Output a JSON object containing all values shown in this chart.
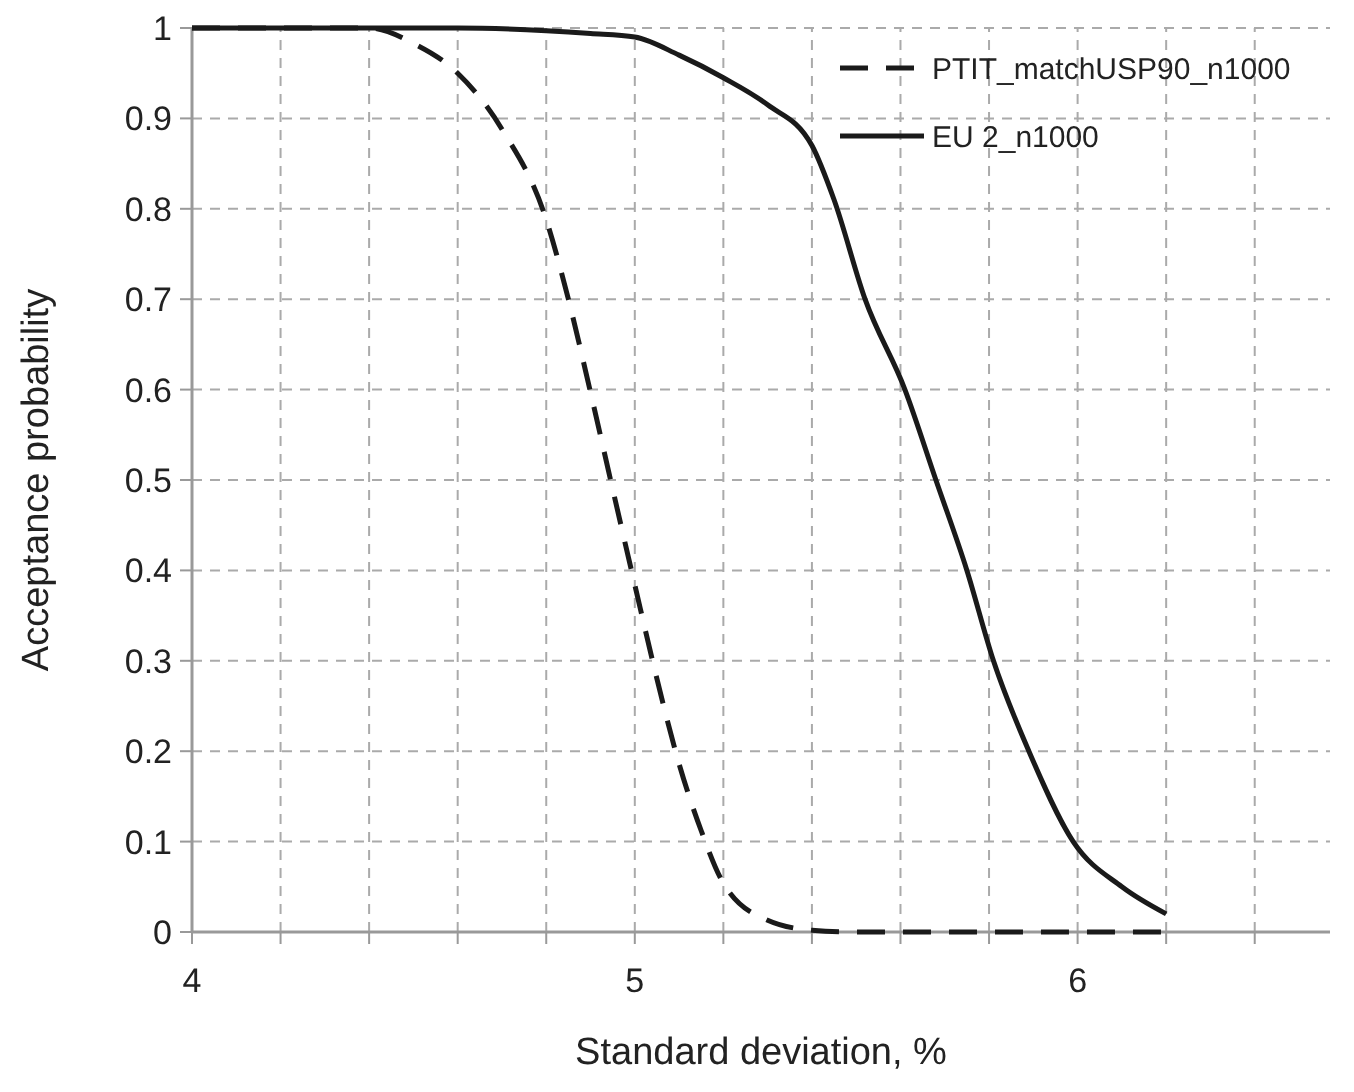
{
  "chart_data": {
    "type": "line",
    "xlabel": "Standard deviation, %",
    "ylabel": "Acceptance probability",
    "xlim": [
      4,
      6.57
    ],
    "xticks": [
      4,
      {
        "value": 4.2,
        "label": null
      },
      {
        "value": 4.4,
        "label": null
      },
      {
        "value": 4.6,
        "label": null
      },
      {
        "value": 4.8,
        "label": null
      },
      5,
      {
        "value": 5.2,
        "label": null
      },
      {
        "value": 5.4,
        "label": null
      },
      {
        "value": 5.6,
        "label": null
      },
      {
        "value": 5.8,
        "label": null
      },
      6,
      {
        "value": 6.2,
        "label": null
      },
      {
        "value": 6.4,
        "label": null
      }
    ],
    "ylim": [
      0,
      1
    ],
    "yticks": [
      0,
      0.1,
      0.2,
      0.3,
      0.4,
      0.5,
      0.6,
      0.7,
      0.8,
      0.9,
      1
    ],
    "grid": true,
    "legend": "top right",
    "marker": "none",
    "series": [
      {
        "name": "PTIT_matchUSP90_n1000",
        "color": "#1a1a1a",
        "line_style": "dashed",
        "x": [
          4,
          4.4,
          4.5,
          4.6,
          4.7,
          4.8,
          4.85,
          4.9,
          4.95,
          5.0,
          5.05,
          5.1,
          5.15,
          5.2,
          5.3,
          5.4,
          5.5,
          5.6,
          5.8,
          6.0,
          6.2
        ],
        "values": [
          1,
          1,
          0.983,
          0.95,
          0.888,
          0.788,
          0.7,
          0.597,
          0.49,
          0.384,
          0.28,
          0.186,
          0.112,
          0.054,
          0.013,
          0.002,
          0,
          0,
          0,
          0,
          0
        ]
      },
      {
        "name": "EU 2_n1000",
        "color": "#1a1a1a",
        "line_style": "solid",
        "x": [
          4,
          4.6,
          4.8,
          4.9,
          5.0,
          5.1,
          5.2,
          5.3,
          5.4,
          5.45,
          5.52,
          5.61,
          5.68,
          5.75,
          5.81,
          5.89,
          5.99,
          6.1,
          6.2
        ],
        "values": [
          1,
          1,
          0.997,
          0.994,
          0.99,
          0.97,
          0.945,
          0.915,
          0.87,
          0.81,
          0.7,
          0.6,
          0.5,
          0.4,
          0.3,
          0.2,
          0.1,
          0.05,
          0.02
        ]
      }
    ]
  }
}
